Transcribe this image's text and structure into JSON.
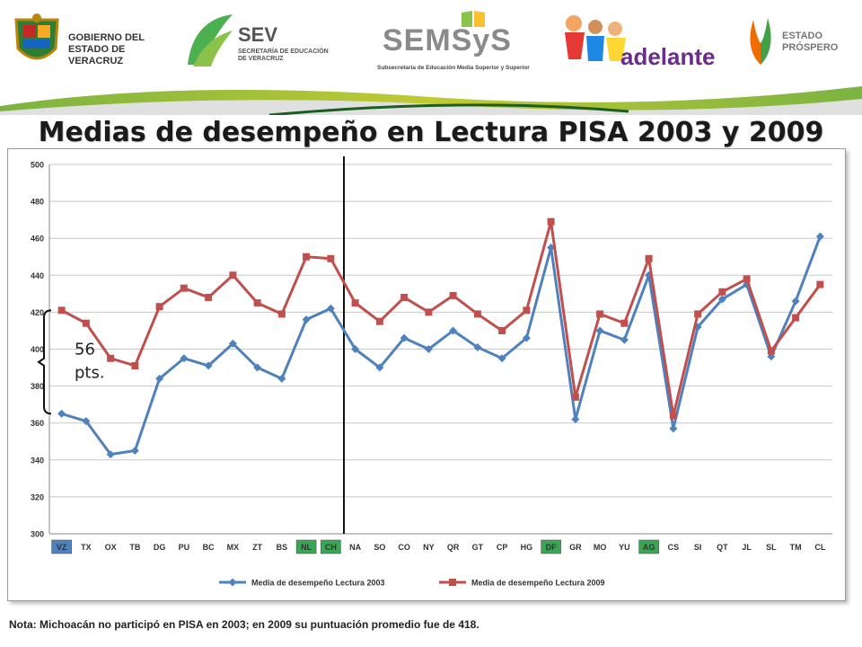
{
  "header": {
    "gov_line1": "GOBIERNO DEL",
    "gov_line2": "ESTADO DE VERACRUZ",
    "sev_name": "SEV",
    "sev_line1": "SECRETARÍA DE EDUCACIÓN",
    "sev_line2": "DE VERACRUZ",
    "semsys_name": "SEMSyS",
    "semsys_sub": "Subsecretaría de Educación Media Superior y Superior",
    "adelante_name": "adelante",
    "prospero_line1": "ESTADO",
    "prospero_line2": "PRÓSPERO"
  },
  "title": "Medias de desempeño en Lectura PISA 2003 y 2009",
  "note": "Nota: Michoacán no participó en PISA en 2003; en 2009 su puntuación promedio fue de 418.",
  "gap_annotation": {
    "line1": "56",
    "line2": "pts."
  },
  "colors": {
    "series_2003": "#4f81bd",
    "series_2009": "#c0504d",
    "green_highlight": "#3aa655",
    "blue_highlight": "#4f81bd"
  },
  "chart_data": {
    "type": "line",
    "title": "Medias de desempeño en Lectura PISA 2003 y 2009",
    "categories": [
      "VZ",
      "TX",
      "OX",
      "TB",
      "DG",
      "PU",
      "BC",
      "MX",
      "ZT",
      "BS",
      "NL",
      "CH",
      "NA",
      "SO",
      "CO",
      "NY",
      "QR",
      "GT",
      "CP",
      "HG",
      "DF",
      "GR",
      "MO",
      "YU",
      "AG",
      "CS",
      "SI",
      "QT",
      "JL",
      "SL",
      "TM",
      "CL"
    ],
    "highlighted_blue": [
      "VZ"
    ],
    "highlighted_green": [
      "NL",
      "CH",
      "DF",
      "AG"
    ],
    "series": [
      {
        "name": "Media de desempeño Lectura 2003",
        "marker": "diamond",
        "values": [
          365,
          361,
          343,
          345,
          384,
          395,
          391,
          403,
          390,
          384,
          416,
          422,
          400,
          390,
          406,
          400,
          410,
          401,
          395,
          406,
          455,
          362,
          410,
          405,
          440,
          357,
          412,
          427,
          435,
          396,
          426,
          461
        ]
      },
      {
        "name": "Media de desempeño Lectura 2009",
        "marker": "square",
        "values": [
          421,
          414,
          395,
          391,
          423,
          433,
          428,
          440,
          425,
          419,
          450,
          449,
          425,
          415,
          428,
          420,
          429,
          419,
          410,
          421,
          469,
          374,
          419,
          414,
          449,
          364,
          419,
          431,
          438,
          399,
          417,
          435
        ]
      }
    ],
    "ylim": [
      300,
      500
    ],
    "yticks": [
      300,
      320,
      340,
      360,
      380,
      400,
      420,
      440,
      460,
      480,
      500
    ],
    "divider_after_category": "CH",
    "grid": true,
    "legend": "bottom"
  }
}
